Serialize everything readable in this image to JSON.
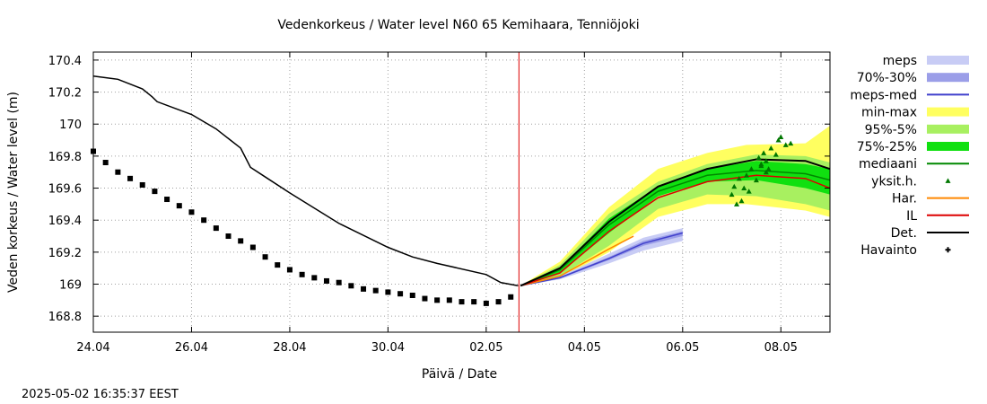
{
  "chart_data": {
    "type": "line",
    "title": "Vedenkorkeus / Water level   N60 65 Kemihaara, Tenniöjoki",
    "xlabel": "Päivä / Date",
    "ylabel": "Veden korkeus / Water level (m)",
    "timestamp": "2025-05-02 16:35:37 EEST",
    "xlim": [
      "2025-04-24",
      "2025-05-09"
    ],
    "ylim": [
      168.7,
      170.45
    ],
    "x_ticks": [
      "24.04",
      "26.04",
      "28.04",
      "30.04",
      "02.05",
      "04.05",
      "06.05",
      "08.05"
    ],
    "y_ticks": [
      "170.4",
      "170.2",
      "170",
      "169.8",
      "169.6",
      "169.4",
      "169.2",
      "169",
      "168.8"
    ],
    "grid": true,
    "legend_placement": "right",
    "forecast_start": "2025-05-02T16:00",
    "colors": {
      "meps": "#c8ccf5",
      "p70_30": "#9b9ee8",
      "meps_med": "#4040cc",
      "min_max": "#ffff60",
      "p95_5": "#a8f060",
      "p75_25": "#10e010",
      "median": "#008800",
      "yksit": "#007700",
      "har": "#ff8800",
      "il": "#dd0000",
      "det": "#000000",
      "havainto": "#000000",
      "now_line": "#dd0000"
    },
    "legend": [
      {
        "key": "meps",
        "label": "meps",
        "style": "band"
      },
      {
        "key": "p70_30",
        "label": "70%-30%",
        "style": "band"
      },
      {
        "key": "meps_med",
        "label": "meps-med",
        "style": "line"
      },
      {
        "key": "min_max",
        "label": "min-max",
        "style": "band"
      },
      {
        "key": "p95_5",
        "label": "95%-5%",
        "style": "band"
      },
      {
        "key": "p75_25",
        "label": "75%-25%",
        "style": "band"
      },
      {
        "key": "median",
        "label": "mediaani",
        "style": "line"
      },
      {
        "key": "yksit",
        "label": "yksit.h.",
        "style": "triangle"
      },
      {
        "key": "har",
        "label": "Har.",
        "style": "line"
      },
      {
        "key": "il",
        "label": "IL",
        "style": "line"
      },
      {
        "key": "det",
        "label": "Det.",
        "style": "line"
      },
      {
        "key": "havainto",
        "label": "Havainto",
        "style": "plus"
      }
    ],
    "series": {
      "det_history": {
        "x": [
          0,
          0.5,
          1.0,
          1.2,
          1.3,
          2.0,
          2.5,
          3.0,
          3.2,
          3.5,
          4.0,
          5.0,
          6.0,
          6.5,
          7.0,
          8.0,
          8.3,
          8.65
        ],
        "y": [
          170.3,
          170.28,
          170.22,
          170.17,
          170.14,
          170.06,
          169.97,
          169.85,
          169.73,
          169.67,
          169.57,
          169.38,
          169.23,
          169.17,
          169.13,
          169.06,
          169.01,
          168.99
        ]
      },
      "havainto": {
        "x": [
          0,
          0.25,
          0.5,
          0.75,
          1.0,
          1.25,
          1.5,
          1.75,
          2.0,
          2.25,
          2.5,
          2.75,
          3.0,
          3.25,
          3.5,
          3.75,
          4.0,
          4.25,
          4.5,
          4.75,
          5.0,
          5.25,
          5.5,
          5.75,
          6.0,
          6.25,
          6.5,
          6.75,
          7.0,
          7.25,
          7.5,
          7.75,
          8.0,
          8.25,
          8.5
        ],
        "y": [
          169.83,
          169.76,
          169.7,
          169.66,
          169.62,
          169.58,
          169.53,
          169.49,
          169.45,
          169.4,
          169.35,
          169.3,
          169.27,
          169.23,
          169.17,
          169.12,
          169.09,
          169.06,
          169.04,
          169.02,
          169.01,
          168.99,
          168.97,
          168.96,
          168.95,
          168.94,
          168.93,
          168.91,
          168.9,
          168.9,
          168.89,
          168.89,
          168.88,
          168.89,
          168.92
        ]
      },
      "min_max": {
        "x": [
          8.7,
          9.5,
          10.5,
          11.5,
          12.5,
          13.3,
          14.5,
          15.0
        ],
        "low": [
          168.99,
          169.04,
          169.2,
          169.42,
          169.5,
          169.5,
          169.46,
          169.42
        ],
        "high": [
          168.99,
          169.14,
          169.48,
          169.72,
          169.82,
          169.87,
          169.88,
          169.99
        ]
      },
      "p95_5": {
        "x": [
          8.7,
          9.5,
          10.5,
          11.5,
          12.5,
          13.5,
          14.5,
          15.0
        ],
        "low": [
          168.99,
          169.05,
          169.24,
          169.47,
          169.56,
          169.55,
          169.5,
          169.46
        ],
        "high": [
          168.99,
          169.12,
          169.44,
          169.64,
          169.75,
          169.81,
          169.8,
          169.76
        ]
      },
      "p75_25": {
        "x": [
          8.7,
          9.5,
          10.5,
          11.5,
          12.5,
          13.5,
          14.5,
          15.0
        ],
        "low": [
          168.99,
          169.07,
          169.32,
          169.55,
          169.64,
          169.65,
          169.6,
          169.56
        ],
        "high": [
          168.99,
          169.1,
          169.41,
          169.61,
          169.72,
          169.77,
          169.75,
          169.72
        ]
      },
      "median": {
        "x": [
          8.7,
          9.5,
          10.5,
          11.5,
          12.5,
          13.5,
          14.5,
          15.0
        ],
        "y": [
          168.99,
          169.09,
          169.37,
          169.58,
          169.68,
          169.71,
          169.69,
          169.65
        ]
      },
      "det_forecast": {
        "x": [
          8.7,
          9.5,
          10.5,
          11.5,
          12.5,
          13.5,
          14.5,
          15.0
        ],
        "y": [
          168.99,
          169.1,
          169.39,
          169.61,
          169.72,
          169.78,
          169.77,
          169.72
        ]
      },
      "il": {
        "x": [
          8.7,
          9.5,
          10.5,
          11.5,
          12.5,
          13.5,
          14.5,
          15.0
        ],
        "y": [
          168.99,
          169.07,
          169.33,
          169.54,
          169.64,
          169.68,
          169.66,
          169.6
        ]
      },
      "har": {
        "x": [
          8.7,
          9.5,
          10.5,
          11.0
        ],
        "y": [
          168.99,
          169.05,
          169.22,
          169.3
        ]
      },
      "meps": {
        "x": [
          8.7,
          9.5,
          10.5,
          11.2,
          12.0
        ],
        "low": [
          168.99,
          169.03,
          169.13,
          169.21,
          169.27
        ],
        "high": [
          168.99,
          169.05,
          169.19,
          169.29,
          169.35
        ]
      },
      "p70_30": {
        "x": [
          8.7,
          9.5,
          10.5,
          11.2,
          12.0
        ],
        "low": [
          168.99,
          169.035,
          169.15,
          169.24,
          169.3
        ],
        "high": [
          168.99,
          169.045,
          169.17,
          169.27,
          169.33
        ]
      },
      "meps_med": {
        "x": [
          8.7,
          9.5,
          10.5,
          11.2,
          12.0
        ],
        "y": [
          168.99,
          169.04,
          169.16,
          169.255,
          169.32
        ]
      },
      "yksit": {
        "x": [
          13.0,
          13.05,
          13.1,
          13.15,
          13.2,
          13.3,
          13.35,
          13.4,
          13.5,
          13.55,
          13.6,
          13.65,
          13.7,
          13.75,
          13.8,
          13.9,
          13.95,
          14.0,
          14.1,
          14.2,
          13.6,
          13.7,
          13.25
        ],
        "y": [
          169.56,
          169.61,
          169.5,
          169.66,
          169.52,
          169.68,
          169.58,
          169.72,
          169.65,
          169.79,
          169.74,
          169.82,
          169.77,
          169.72,
          169.85,
          169.81,
          169.9,
          169.92,
          169.87,
          169.88,
          169.75,
          169.7,
          169.6
        ]
      }
    }
  }
}
